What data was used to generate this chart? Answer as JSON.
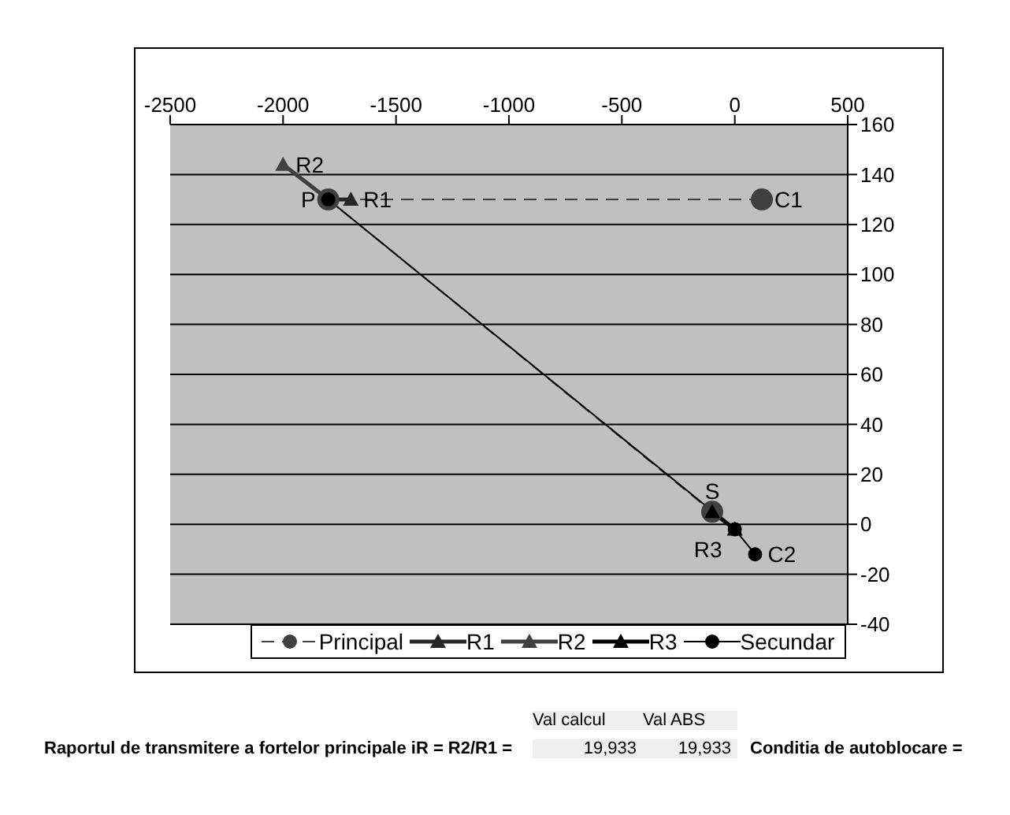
{
  "chart_data": {
    "type": "line",
    "xlim": [
      -2500,
      500
    ],
    "xticks": [
      -2500,
      -2000,
      -1500,
      -1000,
      -500,
      0,
      500
    ],
    "ylim": [
      -40,
      160
    ],
    "yticks": [
      -40,
      -20,
      0,
      20,
      40,
      60,
      80,
      100,
      120,
      140,
      160
    ],
    "grid": "y",
    "legend": "bottom",
    "series": [
      {
        "name": "Principal",
        "color": "#404040",
        "line_style": "dashed",
        "marker": "circle",
        "x": [
          120,
          -1800,
          -100
        ],
        "values": [
          130,
          130,
          5
        ]
      },
      {
        "name": "R1",
        "color": "#262626",
        "line_style": "solid",
        "marker": "triangle",
        "x": [
          -1800,
          -1700
        ],
        "values": [
          130,
          130
        ]
      },
      {
        "name": "R2",
        "color": "#404040",
        "line_style": "solid",
        "marker": "triangle",
        "x": [
          -1800,
          -2000
        ],
        "values": [
          130,
          144
        ]
      },
      {
        "name": "R3",
        "color": "#000000",
        "line_style": "solid",
        "marker": "triangle",
        "x": [
          -100,
          0
        ],
        "values": [
          5,
          -2
        ]
      },
      {
        "name": "Secundar",
        "color": "#000000",
        "line_style": "solid",
        "marker": "circle",
        "x": [
          -1800,
          0,
          90
        ],
        "values": [
          130,
          -2,
          -12
        ]
      }
    ],
    "annotations": [
      {
        "text": "P",
        "x": -1800,
        "y": 130
      },
      {
        "text": "C1",
        "x": 120,
        "y": 130
      },
      {
        "text": "R1",
        "x": -1700,
        "y": 130
      },
      {
        "text": "R2",
        "x": -2000,
        "y": 144
      },
      {
        "text": "S",
        "x": -100,
        "y": 5
      },
      {
        "text": "R3",
        "x": 0,
        "y": -2
      },
      {
        "text": "C2",
        "x": 90,
        "y": -12
      },
      "Val calcul",
      "Val ABS",
      "Raportul de transmitere a fortelor principale iR = R2/R1 =",
      "19,933",
      "19,933",
      "Conditia de autoblocare ="
    ]
  }
}
